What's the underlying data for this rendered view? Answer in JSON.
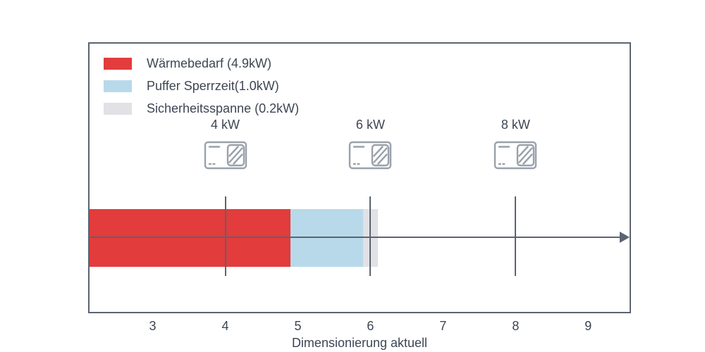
{
  "chart_data": {
    "type": "bar",
    "orientation": "horizontal",
    "stacked": true,
    "title": "",
    "xlabel": "Dimensionierung aktuell",
    "ylabel": "",
    "xlim": [
      2.13,
      9.57
    ],
    "xticks": [
      3,
      4,
      5,
      6,
      7,
      8,
      9
    ],
    "grid": false,
    "legend_position": "upper-left-inside",
    "axis_color": "#5b6470",
    "text_color": "#3d4653",
    "bar": {
      "segments": [
        {
          "label": "Wärmebedarf (4.9kW)",
          "value_kw": 4.9,
          "start": 0,
          "end": 4.9,
          "color": "#e23c3c"
        },
        {
          "label": "Puffer Sperrzeit(1.0kW)",
          "value_kw": 1.0,
          "start": 4.9,
          "end": 5.9,
          "color": "#b8d9ea"
        },
        {
          "label": "Sicherheitsspanne (0.2kW)",
          "value_kw": 0.2,
          "start": 5.9,
          "end": 6.1,
          "color": "#e1e1e6"
        }
      ]
    },
    "legend": [
      {
        "label": "Wärmebedarf (4.9kW)",
        "color": "#e23c3c"
      },
      {
        "label": "Puffer Sperrzeit(1.0kW)",
        "color": "#b8d9ea"
      },
      {
        "label": "Sicherheitsspanne (0.2kW)",
        "color": "#e1e1e6"
      }
    ],
    "markers": [
      {
        "label": "4 kW",
        "x": 4
      },
      {
        "label": "6 kW",
        "x": 6
      },
      {
        "label": "8 kW",
        "x": 8
      }
    ]
  }
}
